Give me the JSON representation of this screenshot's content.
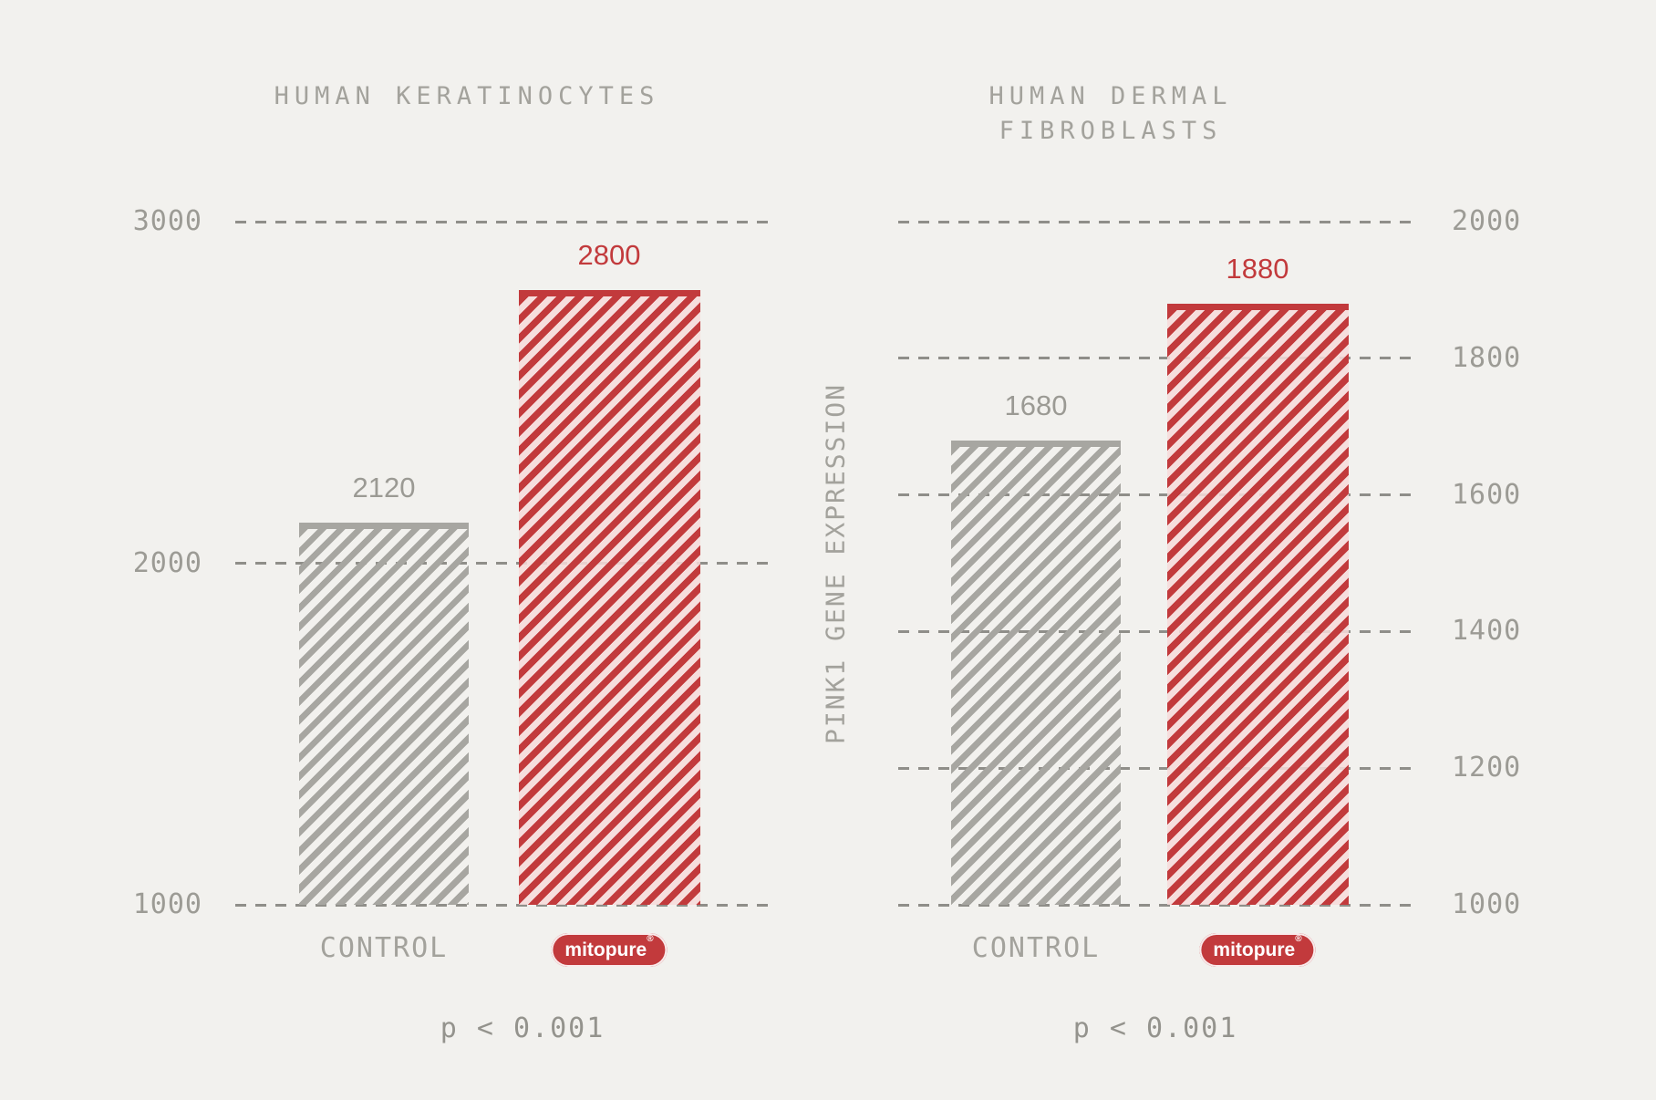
{
  "colors": {
    "background": "#f2f1ee",
    "control_gray": "#a7a6a1",
    "mitopure_red": "#c23a3c",
    "mitopure_pink_fill": "#f7dbda",
    "gridline_gray": "#8f8e89",
    "title_gray": "#a3a29c",
    "tick_gray": "#9c9b95",
    "value_gray": "#9b9a94",
    "pill_text": "#ffffff"
  },
  "brand": {
    "pill_label": "mitopure",
    "registered_mark": "®"
  },
  "chart_data": [
    {
      "type": "bar",
      "title": "HUMAN KERATINOCYTES",
      "title_lines": [
        "HUMAN KERATINOCYTES"
      ],
      "categories": [
        "CONTROL",
        "mitopure"
      ],
      "values": [
        2120,
        2800
      ],
      "value_labels": [
        "2120",
        "2800"
      ],
      "series_styles": [
        "control",
        "mitopure"
      ],
      "ylim": [
        1000,
        3000
      ],
      "yticks": [
        3000,
        2000,
        1000
      ],
      "tick_side": "left",
      "ylabel": "",
      "annotation": "p < 0.001",
      "grid": "dashed-horizontal",
      "legend": "none"
    },
    {
      "type": "bar",
      "title": "HUMAN DERMAL FIBROBLASTS",
      "title_lines": [
        "HUMAN DERMAL",
        "FIBROBLASTS"
      ],
      "categories": [
        "CONTROL",
        "mitopure"
      ],
      "values": [
        1680,
        1880
      ],
      "value_labels": [
        "1680",
        "1880"
      ],
      "series_styles": [
        "control",
        "mitopure"
      ],
      "ylim": [
        1000,
        2000
      ],
      "yticks": [
        2000,
        1800,
        1600,
        1400,
        1200,
        1000
      ],
      "tick_side": "right",
      "ylabel": "PINK1 GENE EXPRESSION",
      "annotation": "p < 0.001",
      "grid": "dashed-horizontal",
      "legend": "none"
    }
  ]
}
